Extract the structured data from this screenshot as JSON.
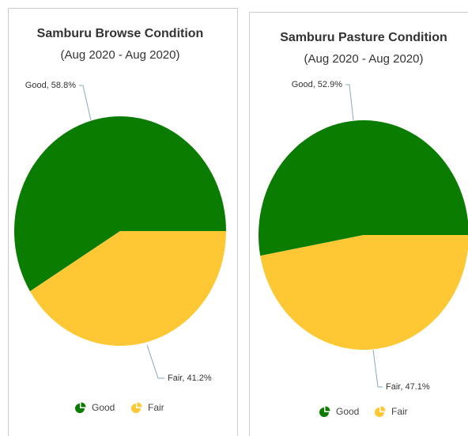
{
  "chart_data": [
    {
      "type": "pie",
      "title": "Samburu Browse Condition",
      "subtitle": "(Aug 2020 - Aug 2020)",
      "categories": [
        "Good",
        "Fair"
      ],
      "values": [
        58.8,
        41.2
      ],
      "value_labels": [
        "Good, 58.8%",
        "Fair, 41.2%"
      ],
      "colors": [
        "#0a7d00",
        "#fec834"
      ]
    },
    {
      "type": "pie",
      "title": "Samburu Pasture Condition",
      "subtitle": "(Aug 2020 - Aug 2020)",
      "categories": [
        "Good",
        "Fair"
      ],
      "values": [
        52.9,
        47.1
      ],
      "value_labels": [
        "Good, 52.9%",
        "Fair, 47.1%"
      ],
      "colors": [
        "#0a7d00",
        "#fec834"
      ]
    }
  ]
}
